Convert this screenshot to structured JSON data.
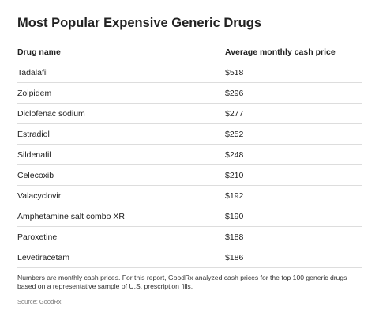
{
  "title": "Most Popular Expensive Generic Drugs",
  "table": {
    "columns": [
      "Drug name",
      "Average monthly cash price"
    ],
    "rows": [
      [
        "Tadalafil",
        "$518"
      ],
      [
        "Zolpidem",
        "$296"
      ],
      [
        "Diclofenac sodium",
        "$277"
      ],
      [
        "Estradiol",
        "$252"
      ],
      [
        "Sildenafil",
        "$248"
      ],
      [
        "Celecoxib",
        "$210"
      ],
      [
        "Valacyclovir",
        "$192"
      ],
      [
        "Amphetamine salt combo XR",
        "$190"
      ],
      [
        "Paroxetine",
        "$188"
      ],
      [
        "Levetiracetam",
        "$186"
      ]
    ]
  },
  "note": "Numbers are monthly cash prices. For this report, GoodRx analyzed cash prices for the top 100 generic drugs based on a representative sample of U.S. prescription fills.",
  "source": "Source: GoodRx"
}
